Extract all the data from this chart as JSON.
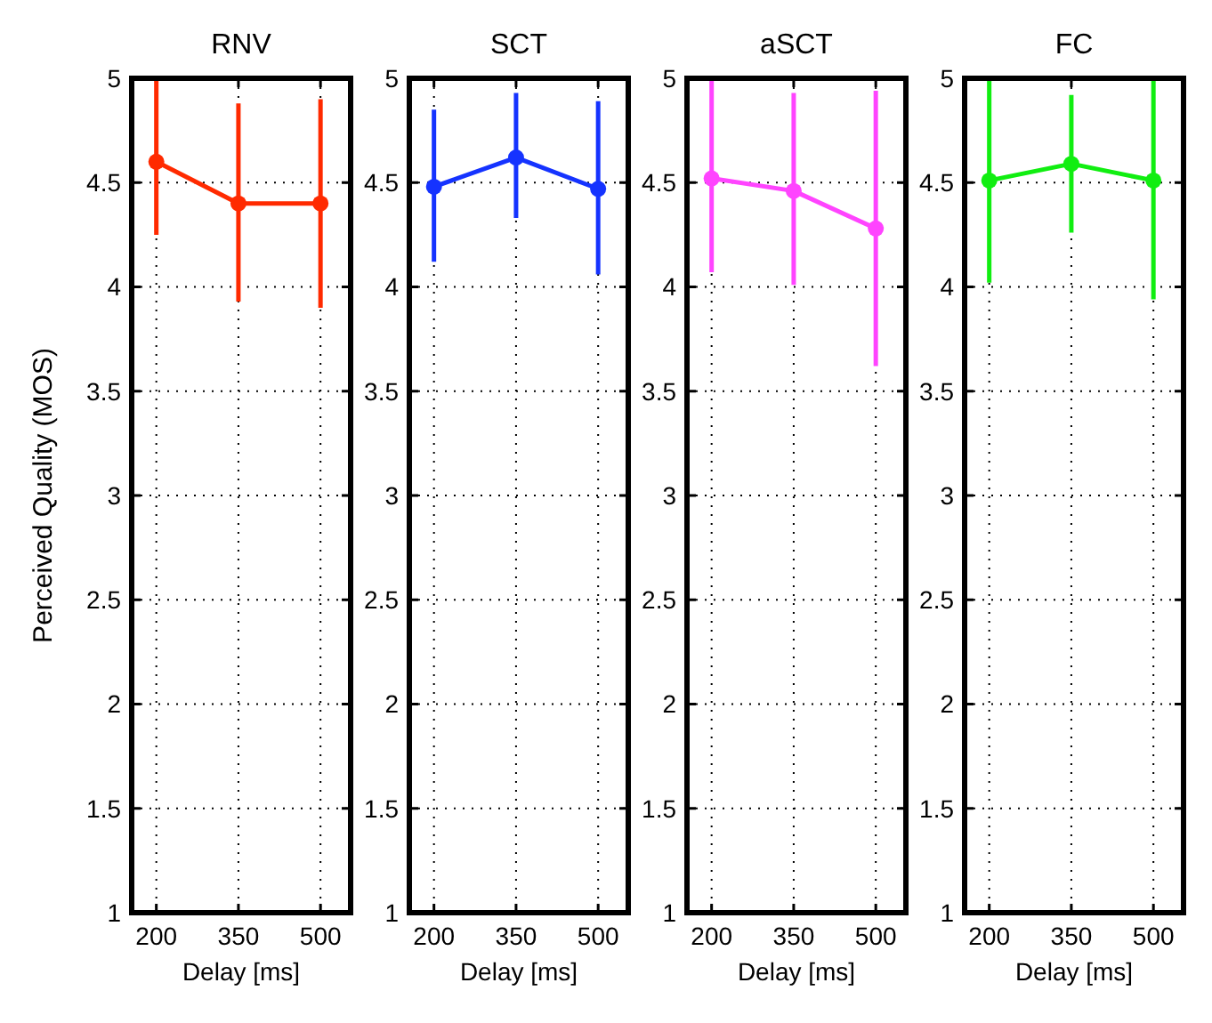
{
  "chart_data": [
    {
      "type": "line",
      "title": "RNV",
      "xlabel": "Delay [ms]",
      "ylabel": "Perceived Quality (MOS)",
      "x": [
        200,
        350,
        500
      ],
      "xlim": [
        155,
        555
      ],
      "xticks": [
        200,
        350,
        500
      ],
      "ylim": [
        1,
        5
      ],
      "yticks": [
        1,
        1.5,
        2,
        2.5,
        3,
        3.5,
        4,
        4.5,
        5
      ],
      "grid": true,
      "marker": "circle",
      "series": [
        {
          "color": "#ff2a00",
          "values": [
            4.6,
            4.4,
            4.4
          ],
          "errors": [
            [
              4.25,
              5
            ],
            [
              3.93,
              4.88
            ],
            [
              3.9,
              4.9
            ]
          ]
        }
      ]
    },
    {
      "type": "line",
      "title": "SCT",
      "xlabel": "Delay [ms]",
      "x": [
        200,
        350,
        500
      ],
      "xlim": [
        155,
        555
      ],
      "xticks": [
        200,
        350,
        500
      ],
      "ylim": [
        1,
        5
      ],
      "yticks": [
        1,
        1.5,
        2,
        2.5,
        3,
        3.5,
        4,
        4.5,
        5
      ],
      "grid": true,
      "marker": "circle",
      "series": [
        {
          "color": "#1533ff",
          "values": [
            4.48,
            4.62,
            4.47
          ],
          "errors": [
            [
              4.12,
              4.85
            ],
            [
              4.33,
              4.93
            ],
            [
              4.06,
              4.89
            ]
          ]
        }
      ]
    },
    {
      "type": "line",
      "title": "aSCT",
      "xlabel": "Delay [ms]",
      "x": [
        200,
        350,
        500
      ],
      "xlim": [
        155,
        555
      ],
      "xticks": [
        200,
        350,
        500
      ],
      "ylim": [
        1,
        5
      ],
      "yticks": [
        1,
        1.5,
        2,
        2.5,
        3,
        3.5,
        4,
        4.5,
        5
      ],
      "grid": true,
      "marker": "circle",
      "series": [
        {
          "color": "#ff44ff",
          "values": [
            4.52,
            4.46,
            4.28
          ],
          "errors": [
            [
              4.07,
              5
            ],
            [
              4.01,
              4.93
            ],
            [
              3.62,
              4.94
            ]
          ]
        }
      ]
    },
    {
      "type": "line",
      "title": "FC",
      "xlabel": "Delay [ms]",
      "x": [
        200,
        350,
        500
      ],
      "xlim": [
        155,
        555
      ],
      "xticks": [
        200,
        350,
        500
      ],
      "ylim": [
        1,
        5
      ],
      "yticks": [
        1,
        1.5,
        2,
        2.5,
        3,
        3.5,
        4,
        4.5,
        5
      ],
      "grid": true,
      "marker": "circle",
      "series": [
        {
          "color": "#11ee11",
          "values": [
            4.51,
            4.59,
            4.51
          ],
          "errors": [
            [
              4.02,
              5
            ],
            [
              4.26,
              4.92
            ],
            [
              3.94,
              5
            ]
          ]
        }
      ]
    }
  ]
}
